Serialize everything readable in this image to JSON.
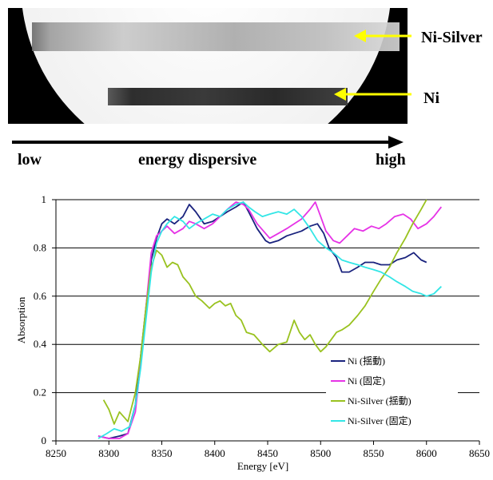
{
  "image_panel": {
    "label_top": "Ni-Silver",
    "label_bottom": "Ni",
    "arrow_color": "#ffff00"
  },
  "dispersion_axis": {
    "low": "low",
    "middle": "energy dispersive",
    "high": "high"
  },
  "chart_data": {
    "type": "line",
    "xlabel": "Energy [eV]",
    "ylabel": "Absorption",
    "xlim": [
      8250,
      8650
    ],
    "ylim": [
      0,
      1
    ],
    "xticks": [
      8250,
      8300,
      8350,
      8400,
      8450,
      8500,
      8550,
      8600,
      8650
    ],
    "yticks": [
      0,
      0.2,
      0.4,
      0.6,
      0.8,
      1
    ],
    "ytick_labels": [
      "0",
      "0.2",
      "0.4",
      "0.6",
      "0.8",
      "1"
    ],
    "grid": "horizontal",
    "legend_position": "lower-right",
    "series": [
      {
        "name": "Ni (揺動)",
        "color": "#1a237e",
        "x": [
          8290,
          8300,
          8310,
          8318,
          8325,
          8330,
          8335,
          8340,
          8345,
          8350,
          8355,
          8362,
          8370,
          8376,
          8382,
          8390,
          8398,
          8405,
          8412,
          8420,
          8427,
          8432,
          8440,
          8448,
          8452,
          8460,
          8468,
          8475,
          8482,
          8490,
          8497,
          8503,
          8508,
          8515,
          8520,
          8527,
          8535,
          8542,
          8550,
          8557,
          8565,
          8572,
          8580,
          8588,
          8595,
          8600
        ],
        "y": [
          0.02,
          0.01,
          0.02,
          0.03,
          0.15,
          0.35,
          0.55,
          0.75,
          0.84,
          0.9,
          0.92,
          0.9,
          0.93,
          0.98,
          0.95,
          0.9,
          0.91,
          0.93,
          0.95,
          0.97,
          0.99,
          0.95,
          0.88,
          0.83,
          0.82,
          0.83,
          0.85,
          0.86,
          0.87,
          0.89,
          0.9,
          0.86,
          0.8,
          0.76,
          0.7,
          0.7,
          0.72,
          0.74,
          0.74,
          0.73,
          0.73,
          0.75,
          0.76,
          0.78,
          0.75,
          0.74
        ]
      },
      {
        "name": "Ni (固定)",
        "color": "#e633e6",
        "x": [
          8290,
          8300,
          8310,
          8318,
          8325,
          8330,
          8335,
          8340,
          8345,
          8350,
          8355,
          8362,
          8370,
          8376,
          8382,
          8390,
          8398,
          8405,
          8412,
          8420,
          8427,
          8432,
          8440,
          8448,
          8452,
          8460,
          8468,
          8475,
          8482,
          8490,
          8495,
          8500,
          8505,
          8512,
          8518,
          8525,
          8532,
          8540,
          8548,
          8555,
          8562,
          8570,
          8578,
          8585,
          8592,
          8600,
          8607,
          8614
        ],
        "y": [
          0.02,
          0.01,
          0.01,
          0.03,
          0.12,
          0.32,
          0.55,
          0.78,
          0.85,
          0.87,
          0.89,
          0.86,
          0.88,
          0.91,
          0.9,
          0.88,
          0.9,
          0.93,
          0.96,
          0.99,
          0.98,
          0.96,
          0.9,
          0.86,
          0.84,
          0.86,
          0.88,
          0.9,
          0.92,
          0.96,
          0.99,
          0.93,
          0.87,
          0.83,
          0.82,
          0.85,
          0.88,
          0.87,
          0.89,
          0.88,
          0.9,
          0.93,
          0.94,
          0.92,
          0.88,
          0.9,
          0.93,
          0.97
        ]
      },
      {
        "name": "Ni-Silver (揺動)",
        "color": "#99c21f",
        "x": [
          8295,
          8300,
          8305,
          8310,
          8318,
          8325,
          8330,
          8335,
          8340,
          8345,
          8350,
          8355,
          8360,
          8365,
          8370,
          8376,
          8382,
          8388,
          8395,
          8400,
          8405,
          8410,
          8415,
          8420,
          8425,
          8430,
          8437,
          8445,
          8452,
          8460,
          8468,
          8475,
          8480,
          8485,
          8490,
          8495,
          8500,
          8505,
          8510,
          8515,
          8520,
          8527,
          8535,
          8542,
          8550,
          8557,
          8565,
          8572,
          8580,
          8587,
          8595,
          8600
        ],
        "y": [
          0.17,
          0.13,
          0.07,
          0.12,
          0.08,
          0.2,
          0.35,
          0.55,
          0.72,
          0.79,
          0.77,
          0.72,
          0.74,
          0.73,
          0.68,
          0.65,
          0.6,
          0.58,
          0.55,
          0.57,
          0.58,
          0.56,
          0.57,
          0.52,
          0.5,
          0.45,
          0.44,
          0.4,
          0.37,
          0.4,
          0.41,
          0.5,
          0.45,
          0.42,
          0.44,
          0.4,
          0.37,
          0.39,
          0.42,
          0.45,
          0.46,
          0.48,
          0.52,
          0.56,
          0.62,
          0.67,
          0.72,
          0.78,
          0.84,
          0.9,
          0.96,
          1.0
        ]
      },
      {
        "name": "Ni-Silver (固定)",
        "color": "#33e6e6",
        "x": [
          8290,
          8298,
          8305,
          8312,
          8320,
          8325,
          8330,
          8335,
          8340,
          8345,
          8350,
          8355,
          8362,
          8370,
          8376,
          8382,
          8390,
          8398,
          8405,
          8412,
          8420,
          8427,
          8432,
          8438,
          8445,
          8452,
          8460,
          8468,
          8475,
          8482,
          8490,
          8497,
          8505,
          8512,
          8520,
          8527,
          8535,
          8542,
          8550,
          8557,
          8565,
          8572,
          8580,
          8587,
          8595,
          8600,
          8607,
          8614
        ],
        "y": [
          0.01,
          0.03,
          0.05,
          0.04,
          0.06,
          0.15,
          0.3,
          0.5,
          0.7,
          0.82,
          0.87,
          0.9,
          0.93,
          0.91,
          0.88,
          0.9,
          0.92,
          0.94,
          0.93,
          0.96,
          0.98,
          0.99,
          0.97,
          0.95,
          0.93,
          0.94,
          0.95,
          0.94,
          0.96,
          0.93,
          0.88,
          0.83,
          0.8,
          0.78,
          0.75,
          0.74,
          0.73,
          0.72,
          0.71,
          0.7,
          0.68,
          0.66,
          0.64,
          0.62,
          0.61,
          0.6,
          0.61,
          0.64
        ]
      }
    ]
  }
}
